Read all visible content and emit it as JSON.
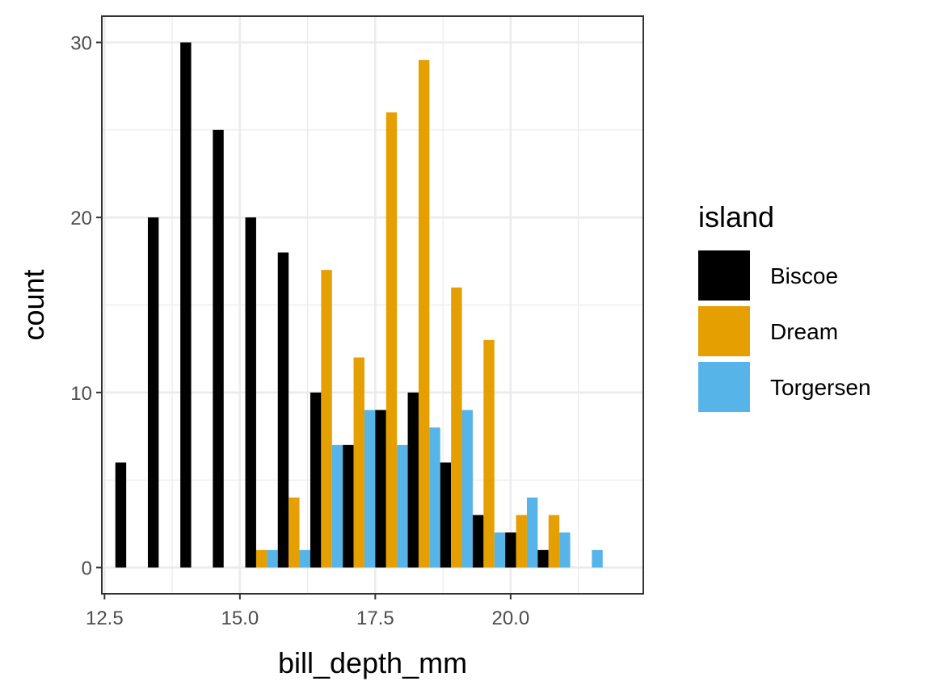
{
  "chart_data": {
    "type": "bar",
    "xlabel": "bill_depth_mm",
    "ylabel": "count",
    "xlim": [
      12.45,
      22.45
    ],
    "ylim": [
      -1.5,
      31.5
    ],
    "x_ticks": [
      12.5,
      15.0,
      17.5,
      20.0
    ],
    "x_tick_labels": [
      "12.5",
      "15.0",
      "17.5",
      "20.0"
    ],
    "y_ticks": [
      0,
      10,
      20,
      30
    ],
    "y_tick_labels": [
      "0",
      "10",
      "20",
      "30"
    ],
    "grid": true,
    "bin_width": 0.6,
    "x": [
      13.0,
      13.6,
      14.2,
      14.8,
      15.4,
      16.0,
      16.6,
      17.2,
      17.8,
      18.4,
      19.0,
      19.6,
      20.2,
      20.8,
      21.4,
      22.0
    ],
    "series": [
      {
        "name": "Biscoe",
        "color": "#000000",
        "values": [
          6,
          20,
          30,
          25,
          20,
          18,
          10,
          7,
          9,
          10,
          6,
          3,
          2,
          1,
          0,
          0
        ]
      },
      {
        "name": "Dream",
        "color": "#E69F00",
        "values": [
          0,
          0,
          0,
          0,
          1,
          4,
          17,
          12,
          26,
          29,
          16,
          13,
          3,
          3,
          0,
          0
        ]
      },
      {
        "name": "Torgersen",
        "color": "#56B4E9",
        "values": [
          0,
          0,
          0,
          0,
          1,
          1,
          7,
          9,
          7,
          8,
          9,
          2,
          4,
          2,
          1,
          0
        ]
      }
    ],
    "legend": {
      "title": "island",
      "position": "right"
    }
  }
}
